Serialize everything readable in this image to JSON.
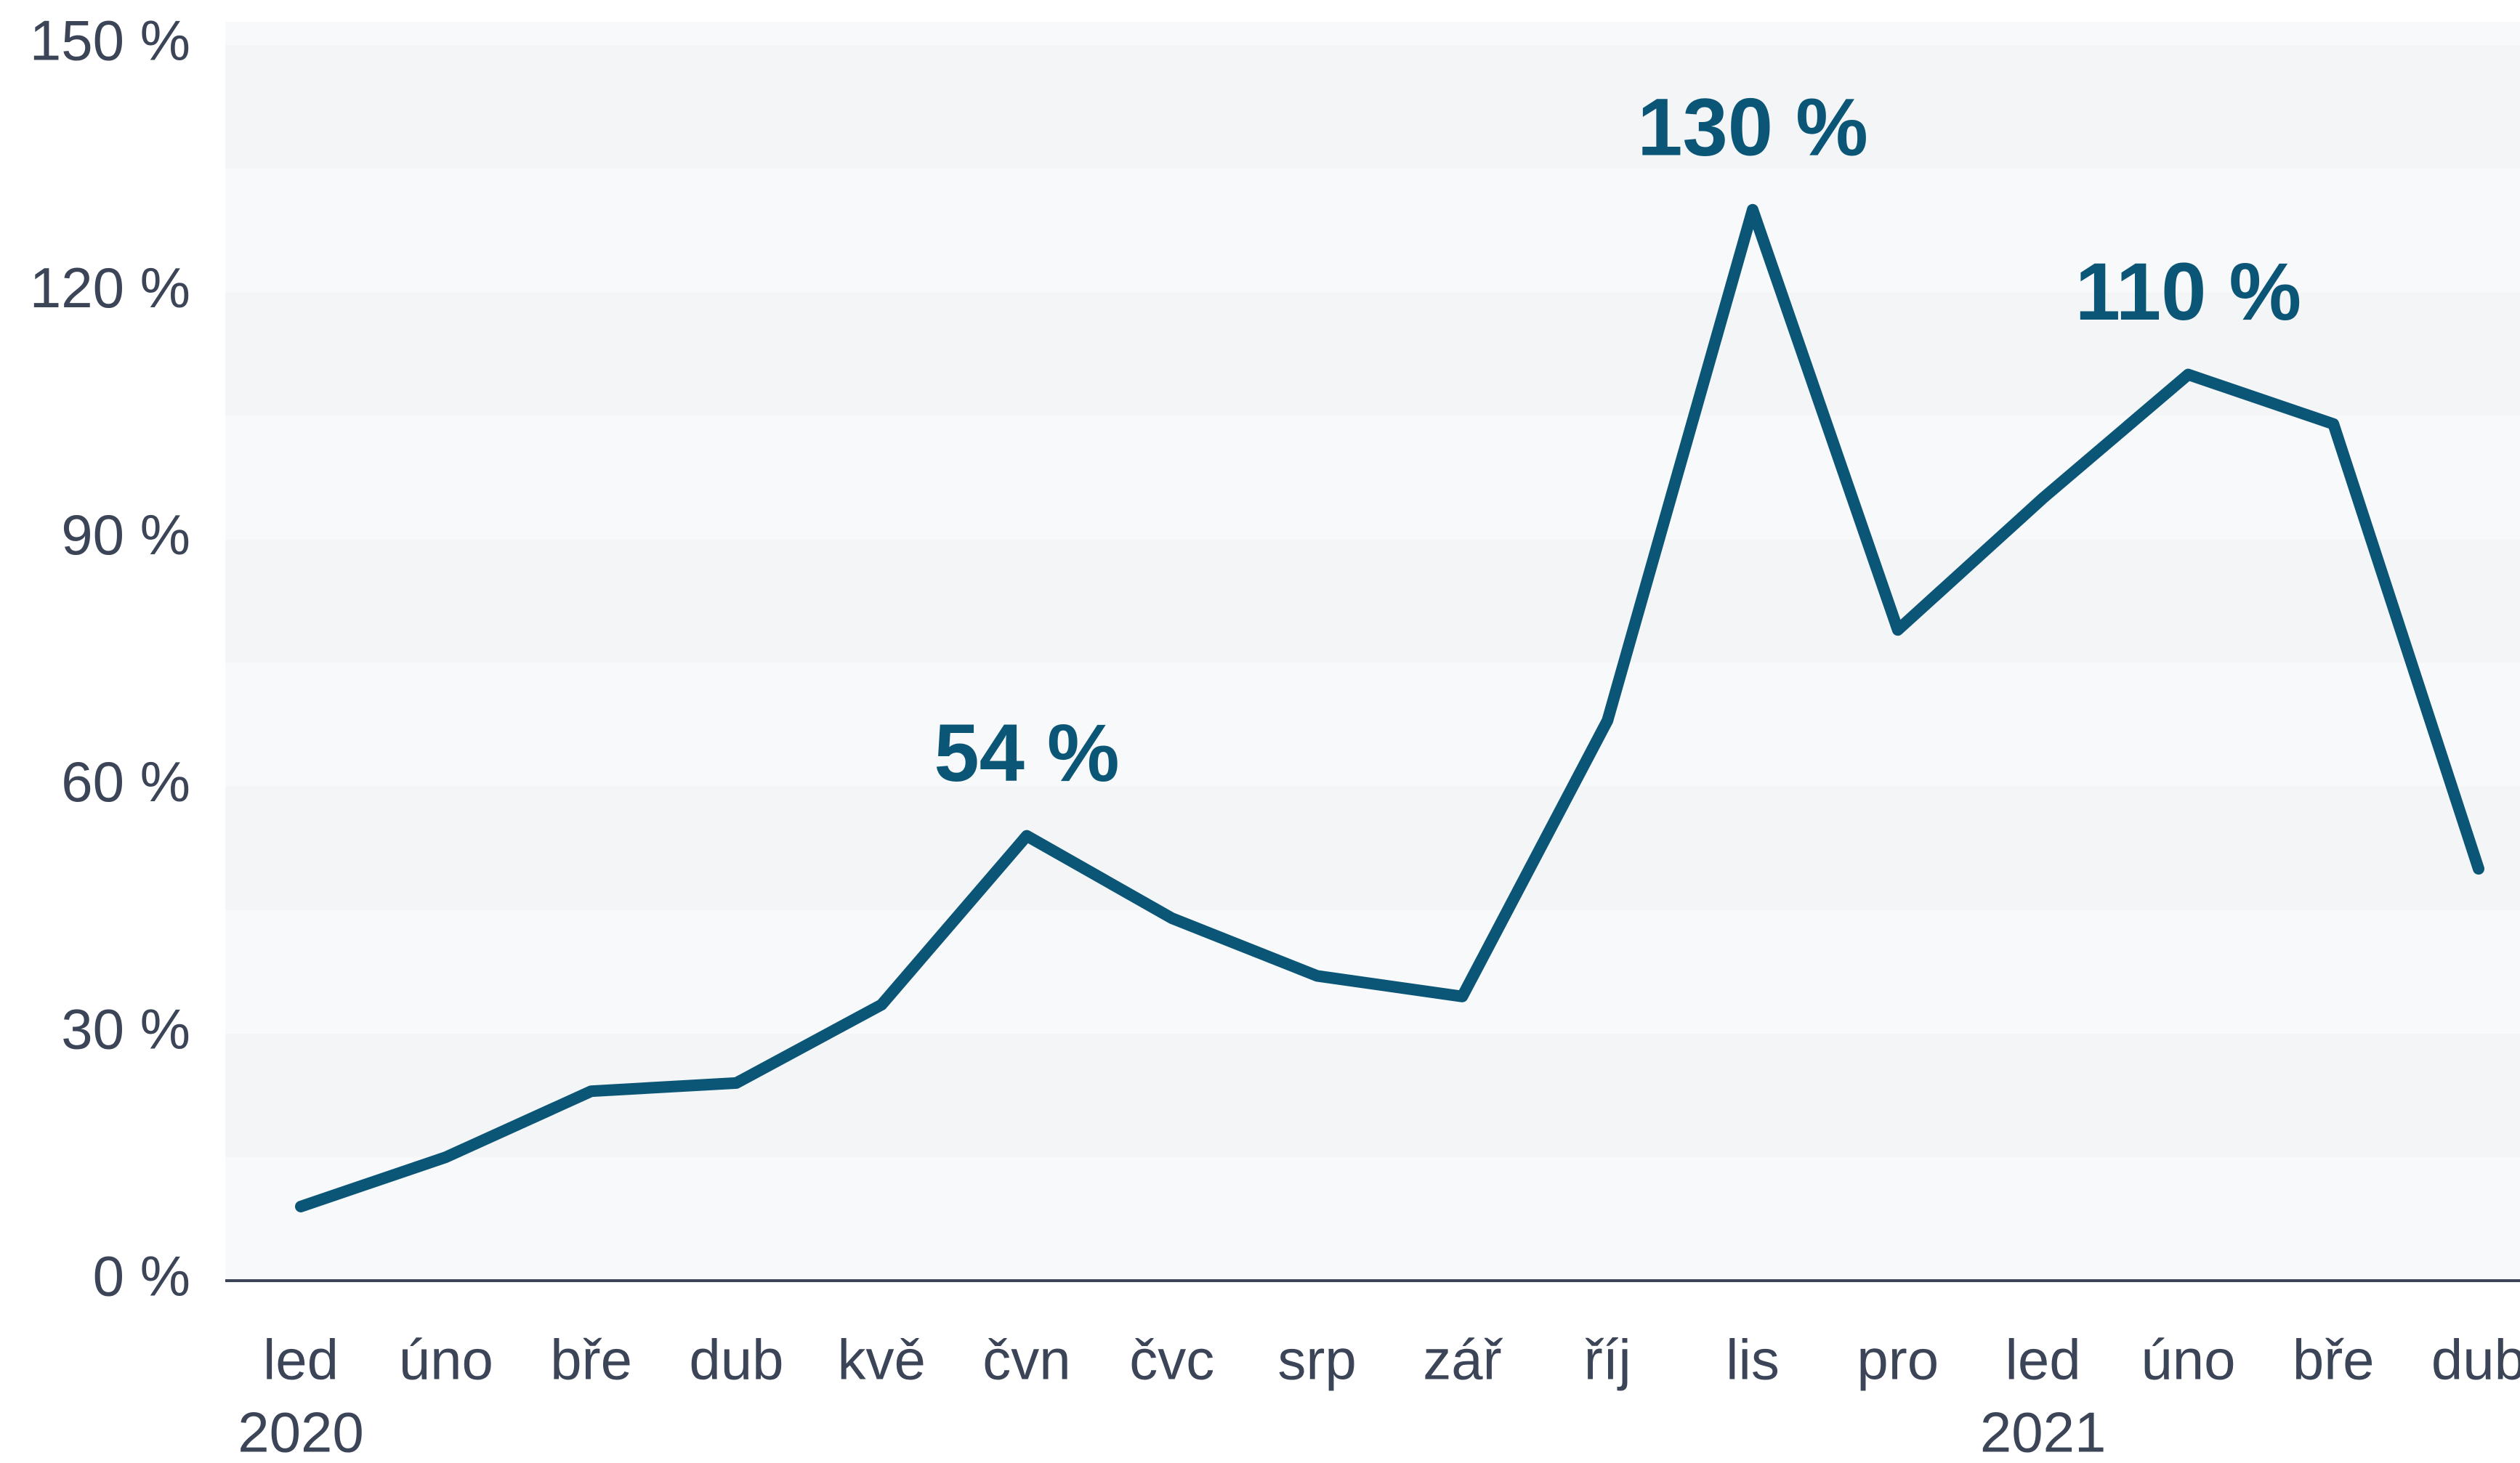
{
  "chart_data": {
    "type": "line",
    "categories": [
      "led",
      "úno",
      "bře",
      "dub",
      "kvě",
      "čvn",
      "čvc",
      "srp",
      "zář",
      "říj",
      "lis",
      "pro",
      "led",
      "úno",
      "bře",
      "dub"
    ],
    "x_group_labels": [
      "2020",
      null,
      null,
      null,
      null,
      null,
      null,
      null,
      null,
      null,
      null,
      null,
      "2021",
      null,
      null,
      null
    ],
    "series": [
      {
        "name": null,
        "color": "#0b5677",
        "values": [
          9,
          15,
          23,
          24,
          33.5,
          54,
          44,
          37,
          34.5,
          68,
          130,
          79,
          95,
          110,
          104,
          50
        ],
        "value_labels": [
          null,
          null,
          null,
          null,
          null,
          "54 %",
          null,
          null,
          null,
          null,
          "130 %",
          null,
          null,
          "110 %",
          null,
          null
        ]
      }
    ],
    "ylim": [
      0,
      150
    ],
    "yticks": [
      {
        "value": 0,
        "label": "0 %"
      },
      {
        "value": 30,
        "label": "30 %"
      },
      {
        "value": 60,
        "label": "60 %"
      },
      {
        "value": 90,
        "label": "90 %"
      },
      {
        "value": 120,
        "label": "120 %"
      },
      {
        "value": 150,
        "label": "150 %"
      }
    ],
    "grid": "bands"
  }
}
